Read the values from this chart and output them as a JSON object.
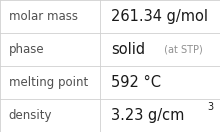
{
  "rows": [
    {
      "label": "molar mass",
      "value": "261.34 g/mol",
      "type": "plain"
    },
    {
      "label": "phase",
      "value": "solid",
      "suffix": " (at STP)",
      "type": "phase"
    },
    {
      "label": "melting point",
      "value": "592 °C",
      "type": "plain"
    },
    {
      "label": "density",
      "value": "3.23 g/cm",
      "superscript": "3",
      "type": "density"
    }
  ],
  "n_rows": 4,
  "background_color": "#ffffff",
  "border_color": "#d0d0d0",
  "label_color": "#505050",
  "value_color": "#1a1a1a",
  "suffix_color": "#909090",
  "label_fontsize": 8.5,
  "value_fontsize": 10.5,
  "suffix_fontsize": 7.0,
  "col_split": 0.455
}
